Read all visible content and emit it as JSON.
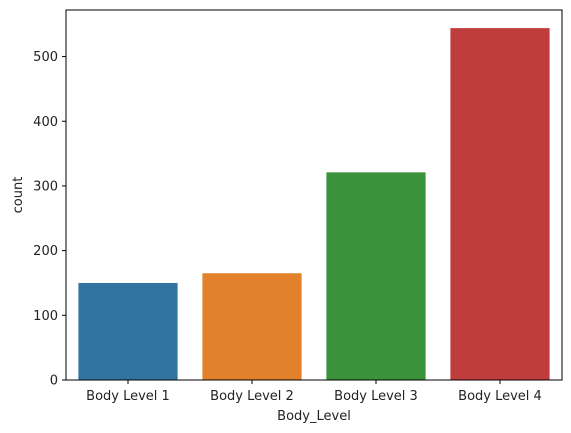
{
  "chart_data": {
    "type": "bar",
    "categories": [
      "Body Level 1",
      "Body Level 2",
      "Body Level 3",
      "Body Level 4"
    ],
    "values": [
      150,
      165,
      321,
      544
    ],
    "colors": [
      "#3274a1",
      "#e1812c",
      "#3a923a",
      "#c03d3e"
    ],
    "xlabel": "Body_Level",
    "ylabel": "count",
    "ylim": [
      0,
      572
    ],
    "yticks": [
      0,
      100,
      200,
      300,
      400,
      500
    ],
    "grid": false,
    "legend": "none"
  }
}
